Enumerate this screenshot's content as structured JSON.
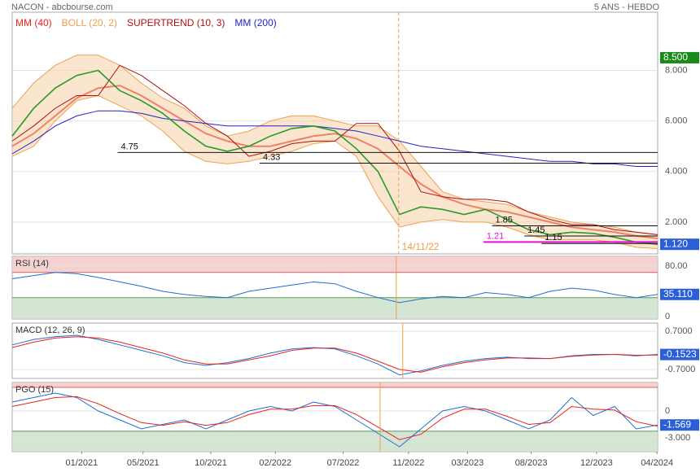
{
  "header": {
    "left": "NACON - abcbourse.com",
    "right": "5 ANS - HEBDO"
  },
  "chart_data": [
    {
      "type": "line",
      "xlim": [
        0,
        30
      ],
      "x": [
        0,
        1,
        2,
        3,
        4,
        5,
        6,
        7,
        8,
        9,
        10,
        11,
        12,
        13,
        14,
        15,
        16,
        17,
        18,
        19,
        20,
        21,
        22,
        23,
        24,
        25,
        26,
        27,
        28,
        29,
        30
      ],
      "values": [
        5.4,
        6.5,
        7.3,
        7.8,
        8.0,
        7.2,
        6.8,
        6.3,
        5.6,
        5.0,
        4.8,
        5.0,
        5.4,
        5.7,
        5.8,
        5.6,
        4.9,
        4.0,
        2.3,
        2.6,
        2.5,
        2.3,
        2.5,
        2.1,
        1.7,
        1.5,
        1.6,
        1.55,
        1.4,
        1.2,
        1.12
      ],
      "color": "#2a9a2a",
      "series": [
        {
          "name": "MM (40)",
          "color": "#e8231a",
          "values": [
            5.0,
            5.5,
            6.2,
            6.9,
            7.3,
            7.4,
            7.0,
            6.5,
            6.0,
            5.5,
            5.2,
            5.0,
            5.0,
            5.2,
            5.4,
            5.5,
            5.3,
            4.9,
            4.2,
            3.5,
            3.0,
            2.7,
            2.5,
            2.4,
            2.2,
            2.0,
            1.8,
            1.7,
            1.6,
            1.45,
            1.35
          ]
        },
        {
          "name": "BOLL (20, 2)",
          "color": "#f0a050",
          "values": [
            6.5,
            7.5,
            8.2,
            8.6,
            8.6,
            8.2,
            7.5,
            6.9,
            6.5,
            5.8,
            5.4,
            5.6,
            6.0,
            6.2,
            6.2,
            6.0,
            5.8,
            5.8,
            5.2,
            4.2,
            3.2,
            2.9,
            2.8,
            2.7,
            2.4,
            2.2,
            2.0,
            1.9,
            1.8,
            1.6,
            1.5
          ],
          "values_lower": [
            4.6,
            5.0,
            6.0,
            6.8,
            7.0,
            6.6,
            6.2,
            5.6,
            4.8,
            4.4,
            4.3,
            4.4,
            4.6,
            4.8,
            5.1,
            5.2,
            4.6,
            3.0,
            1.8,
            2.0,
            2.1,
            2.0,
            2.0,
            1.8,
            1.5,
            1.3,
            1.3,
            1.3,
            1.2,
            1.0,
            0.95
          ]
        },
        {
          "name": "SUPERTREND (10, 3)",
          "color": "#b01010",
          "values": [
            5.2,
            5.8,
            6.5,
            7.0,
            7.0,
            8.2,
            7.8,
            7.2,
            6.6,
            5.9,
            5.4,
            4.6,
            4.8,
            5.1,
            5.2,
            5.2,
            5.9,
            5.9,
            4.8,
            3.2,
            3.0,
            2.9,
            2.9,
            2.8,
            2.4,
            2.1,
            1.9,
            1.9,
            1.7,
            1.6,
            1.5
          ]
        },
        {
          "name": "MM (200)",
          "color": "#2222cc",
          "values": [
            4.7,
            5.2,
            5.8,
            6.2,
            6.4,
            6.4,
            6.3,
            6.1,
            6.0,
            5.9,
            5.8,
            5.8,
            5.8,
            5.8,
            5.8,
            5.7,
            5.6,
            5.4,
            5.2,
            5.0,
            4.9,
            4.8,
            4.7,
            4.6,
            4.5,
            4.4,
            4.4,
            4.3,
            4.3,
            4.2,
            4.2
          ]
        }
      ],
      "ylim": [
        0.74,
        10.3
      ],
      "yticks": [
        {
          "value": 8,
          "label": "8.000"
        },
        {
          "value": 6,
          "label": "6.000"
        },
        {
          "value": 4,
          "label": "4.000"
        },
        {
          "value": 2,
          "label": "2.000"
        }
      ],
      "grid": true,
      "price_labels": [
        {
          "value": 8.5,
          "label": "8.500",
          "color": "#1a8a1a"
        },
        {
          "value": 1.12,
          "label": "1.120",
          "color": "#2a5fd8"
        }
      ],
      "levels": [
        {
          "value": 4.75,
          "from": 4.9,
          "to": 30,
          "color": "#111"
        },
        {
          "value": 4.33,
          "from": 11.5,
          "to": 30,
          "color": "#111"
        },
        {
          "value": 1.85,
          "from": 22.3,
          "to": 30,
          "color": "#111"
        },
        {
          "value": 1.45,
          "from": 23.8,
          "to": 30,
          "color": "#111"
        },
        {
          "value": 1.15,
          "from": 24.6,
          "to": 30,
          "color": "#111"
        },
        {
          "value": 1.21,
          "from": 21.9,
          "to": 30,
          "color": "#e010d0"
        }
      ],
      "marker": {
        "x": 17.96,
        "label": "14/11/22",
        "color": "#f0a040"
      }
    },
    {
      "type": "line",
      "title": "RSI (14)",
      "xlim": [
        0,
        30
      ],
      "x": [
        0,
        1,
        2,
        3,
        4,
        5,
        6,
        7,
        8,
        9,
        10,
        11,
        12,
        13,
        14,
        15,
        16,
        17,
        18,
        19,
        20,
        21,
        22,
        23,
        24,
        25,
        26,
        27,
        28,
        29,
        30
      ],
      "series": [
        {
          "color": "#1f6fd1",
          "values": [
            60,
            65,
            70,
            68,
            62,
            55,
            48,
            40,
            35,
            32,
            30,
            40,
            45,
            50,
            55,
            52,
            40,
            30,
            22,
            28,
            32,
            30,
            38,
            35,
            30,
            40,
            45,
            42,
            35,
            30,
            35.11
          ]
        }
      ],
      "ylim": [
        -3.9,
        95.5
      ],
      "yticks": [
        {
          "value": 80,
          "label": "80.00"
        },
        0
      ],
      "overbought": 70,
      "oversold": 30,
      "price_labels": [
        {
          "value": 35.11,
          "label": "35.110",
          "color": "#2a5fd8"
        }
      ],
      "marker": {
        "x": 17.85,
        "color": "#f0a040"
      }
    },
    {
      "type": "line",
      "title": "MACD (12, 26, 9)",
      "xlim": [
        0,
        30
      ],
      "x": [
        0,
        1,
        2,
        3,
        4,
        5,
        6,
        7,
        8,
        9,
        10,
        11,
        12,
        13,
        14,
        15,
        16,
        17,
        18,
        19,
        20,
        21,
        22,
        23,
        24,
        25,
        26,
        27,
        28,
        29,
        30
      ],
      "series": [
        {
          "color": "#1f6fd1",
          "values": [
            0.2,
            0.4,
            0.5,
            0.55,
            0.4,
            0.2,
            0,
            -0.2,
            -0.45,
            -0.55,
            -0.45,
            -0.3,
            -0.1,
            0.05,
            0.1,
            0.05,
            -0.2,
            -0.5,
            -0.9,
            -0.75,
            -0.55,
            -0.4,
            -0.3,
            -0.25,
            -0.3,
            -0.3,
            -0.2,
            -0.15,
            -0.15,
            -0.2,
            -0.15
          ]
        },
        {
          "color": "#e8231a",
          "values": [
            0.1,
            0.3,
            0.45,
            0.5,
            0.45,
            0.3,
            0.1,
            -0.1,
            -0.35,
            -0.5,
            -0.5,
            -0.35,
            -0.2,
            0,
            0.08,
            0.08,
            -0.1,
            -0.4,
            -0.7,
            -0.8,
            -0.6,
            -0.45,
            -0.35,
            -0.28,
            -0.28,
            -0.3,
            -0.22,
            -0.17,
            -0.15,
            -0.18,
            -0.17
          ]
        }
      ],
      "ylim": [
        -1.027,
        0.997
      ],
      "yticks": [
        {
          "value": 0.7,
          "label": "0.7000"
        },
        {
          "value": -0.7,
          "label": "-0.7000"
        }
      ],
      "price_labels": [
        {
          "value": -0.1523,
          "label": "-0.1523",
          "color": "#2a5fd8"
        }
      ],
      "marker": {
        "x": 18.15,
        "color": "#f0a040"
      }
    },
    {
      "type": "line",
      "title": "PGO (15)",
      "xlim": [
        0,
        30
      ],
      "x": [
        0,
        1,
        2,
        3,
        4,
        5,
        6,
        7,
        8,
        9,
        10,
        11,
        12,
        13,
        14,
        15,
        16,
        17,
        18,
        19,
        20,
        21,
        22,
        23,
        24,
        25,
        26,
        27,
        28,
        29,
        30
      ],
      "series": [
        {
          "color": "#1f6fd1",
          "values": [
            1,
            1.5,
            2,
            1.5,
            0,
            -1,
            -2,
            -1.5,
            -1,
            -2,
            -1,
            0,
            0.5,
            0,
            1,
            0.5,
            -1,
            -2.5,
            -4,
            -2,
            0,
            0.5,
            0,
            -1,
            -2,
            -1,
            1.5,
            -0.5,
            0.5,
            -2,
            -1.569
          ]
        },
        {
          "color": "#e8231a",
          "values": [
            0.5,
            1,
            1.5,
            1.6,
            0.8,
            -0.3,
            -1.3,
            -1.6,
            -1.2,
            -1.6,
            -1.3,
            -0.4,
            0.2,
            0.2,
            0.6,
            0.6,
            -0.4,
            -1.8,
            -3.2,
            -2.6,
            -0.8,
            0.2,
            0.2,
            -0.6,
            -1.5,
            -1.3,
            0.5,
            0.2,
            0.1,
            -1.2,
            -1.7
          ]
        }
      ],
      "ylim": [
        -4.55,
        3.18
      ],
      "yticks": [
        0,
        {
          "value": -3,
          "label": "-3.000"
        }
      ],
      "overbought": 2.64,
      "oversold": -2.27,
      "price_labels": [
        {
          "value": -1.569,
          "label": "-1.569",
          "color": "#2a5fd8"
        }
      ],
      "marker": {
        "x": 17.1,
        "color": "#f0a040"
      },
      "xticks": [
        {
          "value": 3.23,
          "label": "01/2021"
        },
        {
          "value": 6.08,
          "label": "05/2021"
        },
        {
          "value": 9.23,
          "label": "10/2021"
        },
        {
          "value": 12.23,
          "label": "02/2022"
        },
        {
          "value": 15.38,
          "label": "07/2022"
        },
        {
          "value": 18.42,
          "label": "11/2022"
        },
        {
          "value": 21.16,
          "label": "03/2023"
        },
        {
          "value": 24.12,
          "label": "08/2023"
        },
        {
          "value": 27.16,
          "label": "12/2023"
        },
        {
          "value": 29.97,
          "label": "04/2024"
        }
      ]
    }
  ]
}
